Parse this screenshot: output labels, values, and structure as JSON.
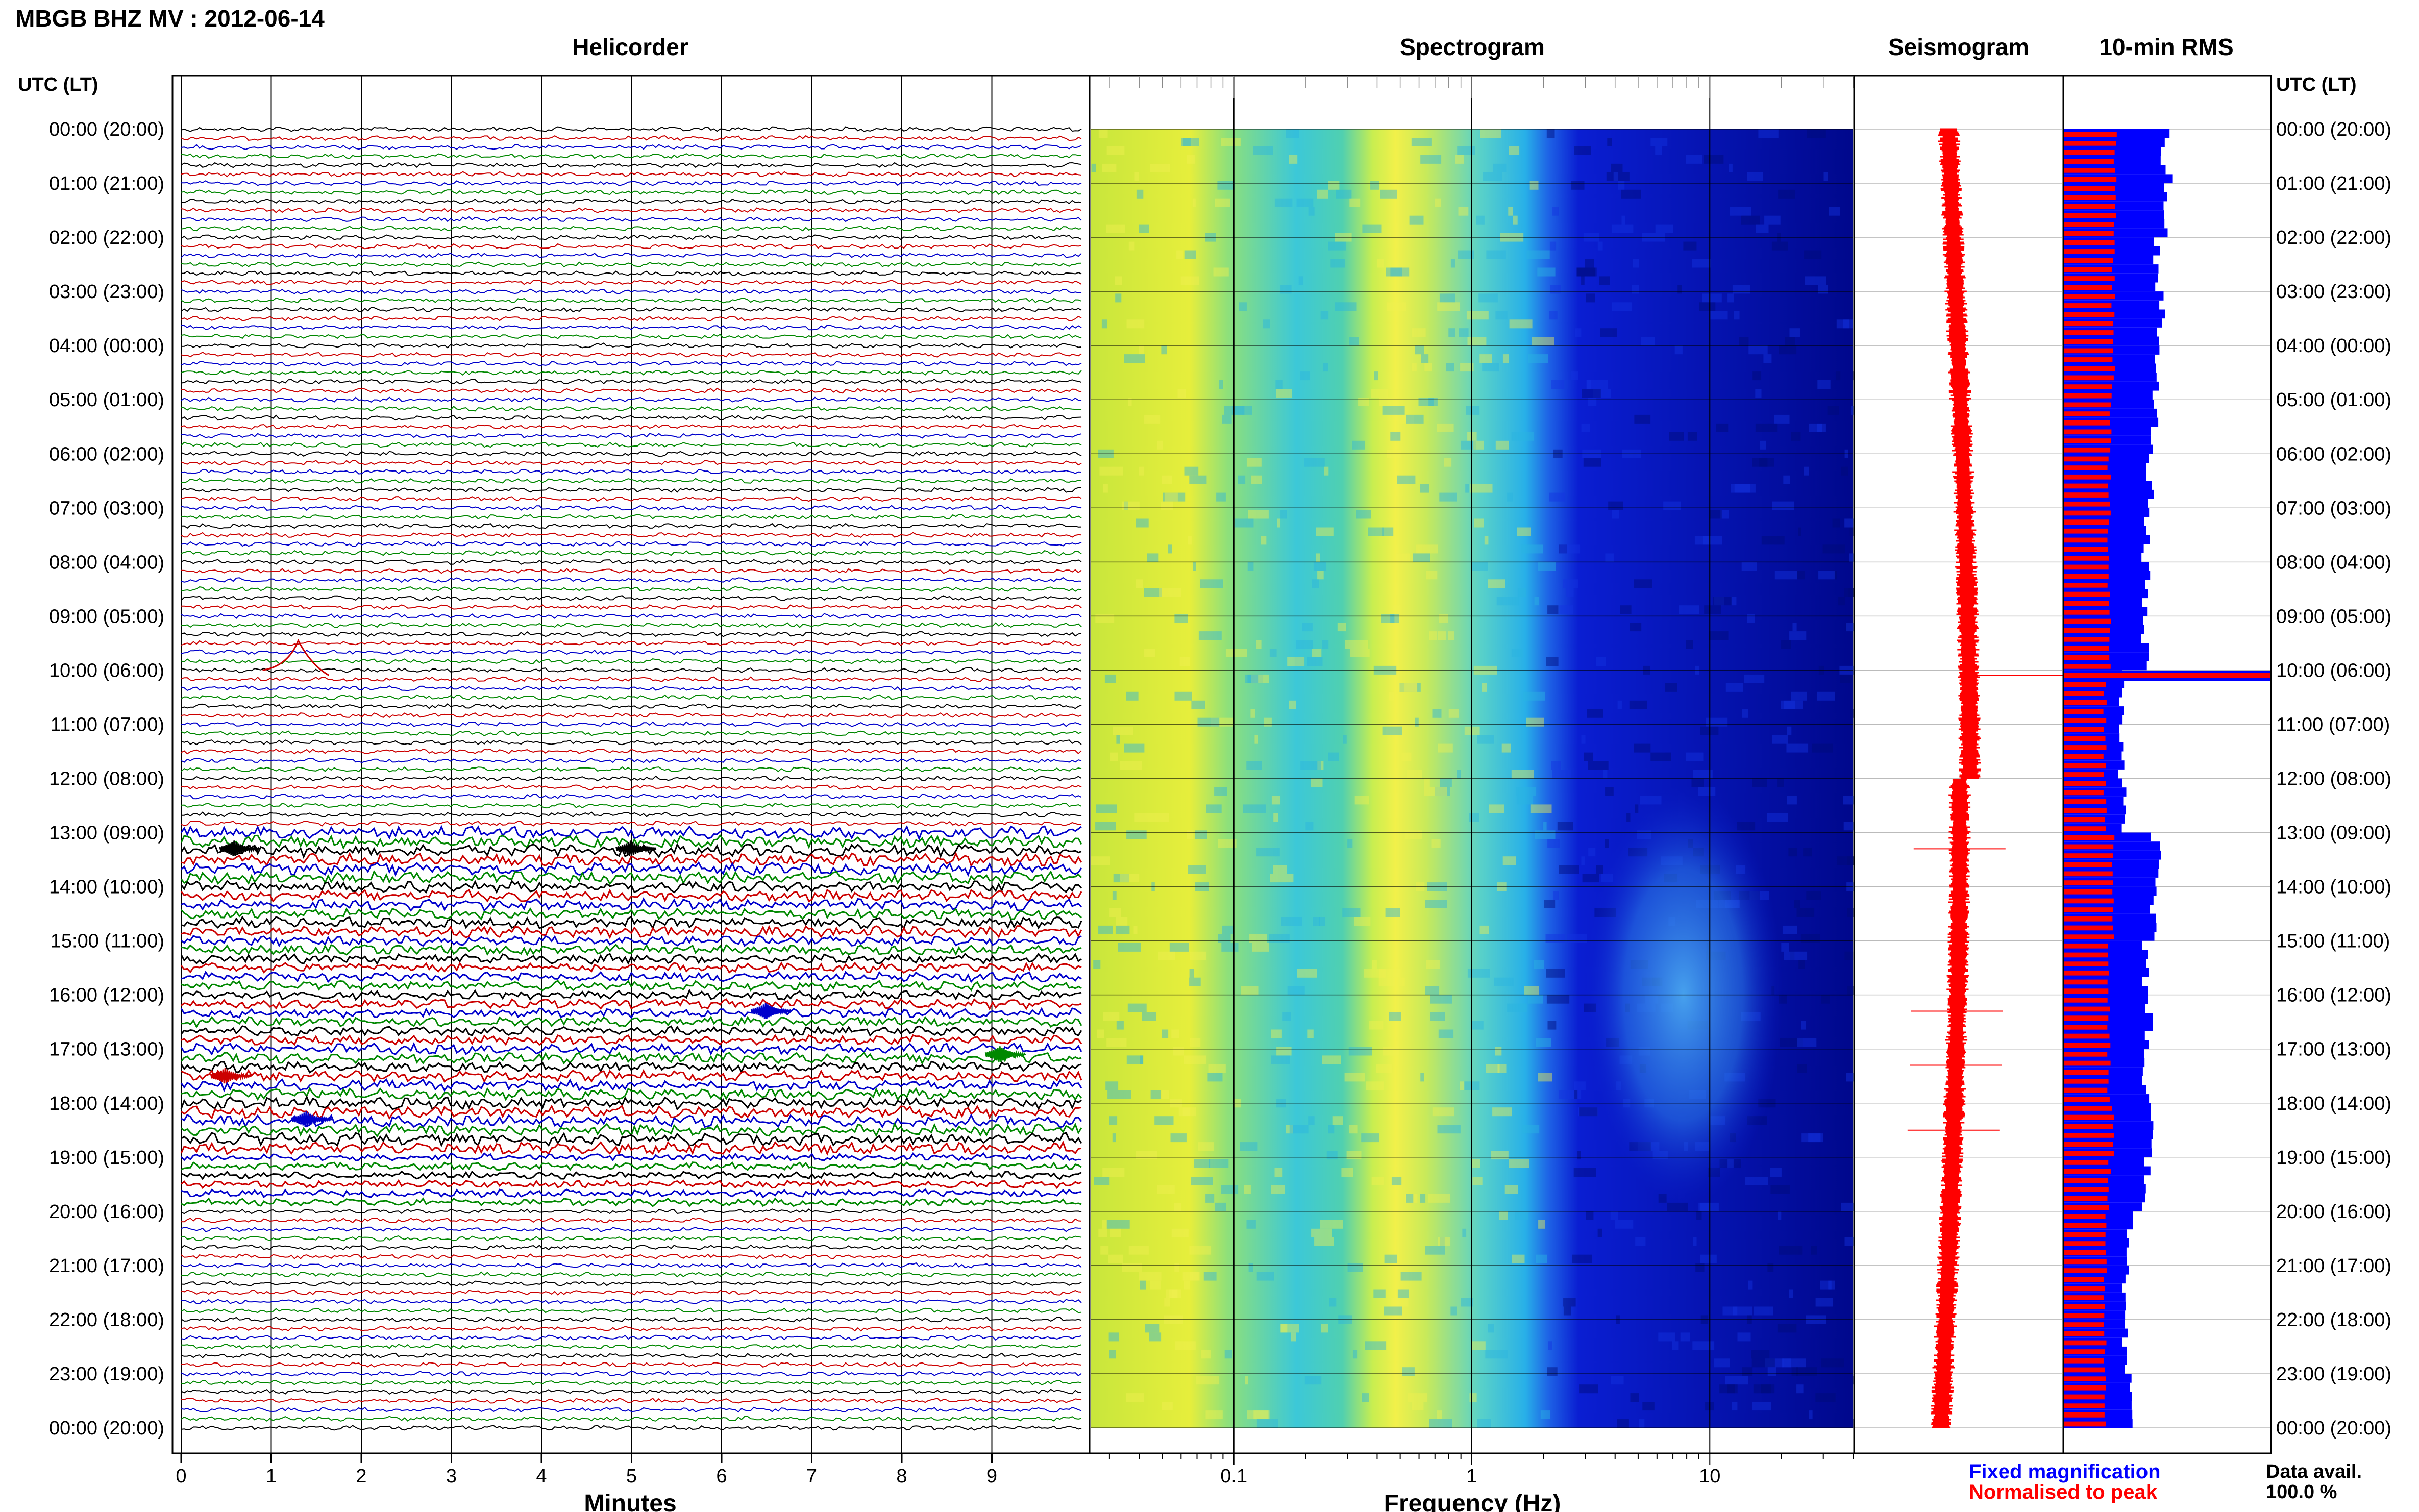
{
  "header": {
    "title": "MBGB BHZ MV : 2012-06-14"
  },
  "panels": {
    "helicorder": "Helicorder",
    "spectrogram": "Spectrogram",
    "seismogram": "Seismogram",
    "rms": "10-min RMS"
  },
  "axes": {
    "time_header": "UTC (LT)",
    "minutes_label": "Minutes",
    "frequency_label": "Frequency (Hz)",
    "minute_ticks": [
      "0",
      "1",
      "2",
      "3",
      "4",
      "5",
      "6",
      "7",
      "8",
      "9"
    ],
    "freq_ticks": [
      "0.1",
      "1",
      "10"
    ],
    "hour_labels": [
      "00:00 (20:00)",
      "01:00 (21:00)",
      "02:00 (22:00)",
      "03:00 (23:00)",
      "04:00 (00:00)",
      "05:00 (01:00)",
      "06:00 (02:00)",
      "07:00 (03:00)",
      "08:00 (04:00)",
      "09:00 (05:00)",
      "10:00 (06:00)",
      "11:00 (07:00)",
      "12:00 (08:00)",
      "13:00 (09:00)",
      "14:00 (10:00)",
      "15:00 (11:00)",
      "16:00 (12:00)",
      "17:00 (13:00)",
      "18:00 (14:00)",
      "19:00 (15:00)",
      "20:00 (16:00)",
      "21:00 (17:00)",
      "22:00 (18:00)",
      "23:00 (19:00)",
      "00:00 (20:00)"
    ]
  },
  "legend": {
    "fixed": "Fixed magnification",
    "normalised": "Normalised to peak",
    "fixed_color": "#0000ff",
    "normalised_color": "#ff0000"
  },
  "data_avail": {
    "label": "Data avail.",
    "value": "100.0 %"
  },
  "colors": {
    "trace_cycle": [
      "#000000",
      "#cc0000",
      "#0000cc",
      "#008800"
    ],
    "spectro_low": "#00008b",
    "spectro_high": "#ffff00",
    "rms_fixed": "#0000ff",
    "rms_normalised": "#ff0000",
    "seismo": "#ff0000"
  },
  "chart_data": [
    {
      "type": "line",
      "title": "Helicorder",
      "xlabel": "Minutes",
      "xlim": [
        0,
        10
      ],
      "rows_per_hour": 6,
      "activity_by_hour": [
        1,
        1,
        1,
        1,
        1,
        1,
        1,
        1,
        1,
        1,
        1,
        1,
        1,
        2.6,
        2.4,
        2.1,
        2.0,
        2.3,
        2.6,
        1.6,
        1.0,
        1.0,
        1.0,
        1.0
      ],
      "events": [
        {
          "hour": 10.0,
          "minute": 1.3,
          "kind": "long-period pulse"
        },
        {
          "hour": 13.3,
          "minute": 0.6
        },
        {
          "hour": 13.3,
          "minute": 5.0
        },
        {
          "hour": 16.3,
          "minute": 6.5
        },
        {
          "hour": 17.1,
          "minute": 9.1
        },
        {
          "hour": 17.5,
          "minute": 0.5
        },
        {
          "hour": 18.3,
          "minute": 1.4
        }
      ]
    },
    {
      "type": "heatmap",
      "title": "Spectrogram",
      "xlabel": "Frequency (Hz)",
      "xscale": "log",
      "xlim": [
        0.025,
        40
      ],
      "ylim_hours": [
        0,
        24
      ],
      "microseism_peak_hz": 0.35,
      "high_freq_activity_hours": [
        12.5,
        19.5
      ]
    },
    {
      "type": "line",
      "title": "Seismogram",
      "color": "#ff0000",
      "spikes_at_hours": [
        10.1,
        13.3,
        16.3,
        17.3,
        18.5
      ]
    },
    {
      "type": "bar",
      "title": "10-min RMS",
      "orientation": "horizontal",
      "series": [
        {
          "name": "Fixed magnification",
          "color": "#0000ff",
          "values_by_hour": [
            0.5,
            0.48,
            0.46,
            0.47,
            0.45,
            0.44,
            0.42,
            0.4,
            0.4,
            0.4,
            0.28,
            0.28,
            0.3,
            0.45,
            0.44,
            0.4,
            0.42,
            0.4,
            0.44,
            0.4,
            0.32,
            0.3,
            0.3,
            0.32
          ]
        },
        {
          "name": "Normalised to peak",
          "color": "#ff0000",
          "values_by_hour": [
            0.25,
            0.25,
            0.24,
            0.24,
            0.24,
            0.23,
            0.22,
            0.22,
            0.22,
            0.22,
            0.2,
            0.2,
            0.2,
            0.24,
            0.24,
            0.22,
            0.22,
            0.22,
            0.24,
            0.22,
            0.2,
            0.2,
            0.2,
            0.2
          ]
        }
      ],
      "peak_hour": 10.1
    }
  ]
}
